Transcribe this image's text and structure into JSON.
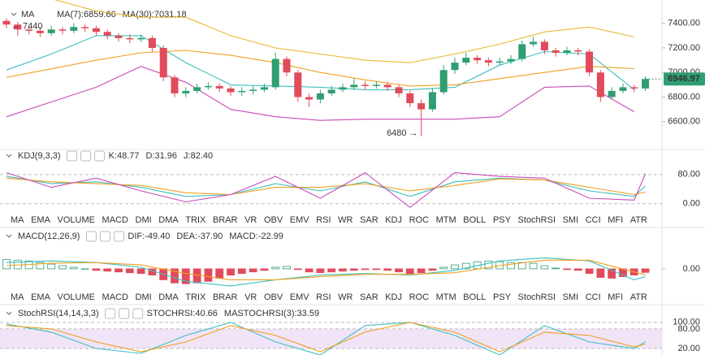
{
  "chart_data": [
    {
      "type": "candlestick",
      "header": "MA",
      "annotations": [
        "← 7440",
        "6480 →"
      ],
      "up_color": "#2f9e72",
      "down_color": "#e14b5b",
      "ylim": [
        6380,
        7590
      ],
      "yticks": [
        {
          "value": 6600,
          "label": "6600.00"
        },
        {
          "value": 6800,
          "label": "6800.00"
        },
        {
          "value": 7000,
          "label": "7000.00"
        },
        {
          "value": 7200,
          "label": "7200.00"
        },
        {
          "value": 7400,
          "label": "7400.00"
        }
      ],
      "open": [
        7420,
        7390,
        7350,
        7340,
        7320,
        7350,
        7340,
        7370,
        7360,
        7330,
        7300,
        7280,
        7270,
        7280,
        7200,
        6960,
        6830,
        6850,
        6880,
        6890,
        6870,
        6840,
        6850,
        6860,
        6880,
        7110,
        7000,
        6800,
        6780,
        6830,
        6860,
        6880,
        6900,
        6890,
        6900,
        6880,
        6830,
        6750,
        6700,
        6840,
        7020,
        7080,
        7120,
        7100,
        7080,
        7090,
        7110,
        7230,
        7250,
        7180,
        7160,
        7180,
        7170,
        7000,
        6800,
        6850,
        6880,
        6870
      ],
      "high": [
        7440,
        7410,
        7380,
        7370,
        7380,
        7370,
        7400,
        7390,
        7380,
        7350,
        7320,
        7310,
        7310,
        7300,
        7220,
        6980,
        6880,
        6910,
        6920,
        6910,
        6890,
        6880,
        6890,
        6910,
        7160,
        7130,
        7020,
        6830,
        6860,
        6890,
        6910,
        6950,
        6930,
        6930,
        6920,
        6900,
        6850,
        6780,
        6870,
        7060,
        7120,
        7160,
        7140,
        7120,
        7120,
        7140,
        7260,
        7290,
        7270,
        7200,
        7210,
        7200,
        7190,
        7020,
        6880,
        6910,
        6900,
        6970
      ],
      "low": [
        7360,
        7300,
        7310,
        7290,
        7300,
        7310,
        7320,
        7330,
        7300,
        7270,
        7250,
        7240,
        7250,
        7170,
        6930,
        6800,
        6800,
        6830,
        6860,
        6840,
        6810,
        6810,
        6820,
        6840,
        6860,
        6970,
        6760,
        6720,
        6750,
        6810,
        6840,
        6860,
        6860,
        6870,
        6850,
        6800,
        6720,
        6480,
        6680,
        6820,
        6990,
        7060,
        7070,
        7050,
        7060,
        7070,
        7090,
        7210,
        7150,
        7130,
        7140,
        7140,
        6970,
        6760,
        6780,
        6830,
        6840,
        6850
      ],
      "close": [
        7390,
        7350,
        7340,
        7320,
        7350,
        7340,
        7370,
        7360,
        7330,
        7300,
        7280,
        7270,
        7280,
        7200,
        6960,
        6830,
        6850,
        6880,
        6890,
        6870,
        6840,
        6850,
        6860,
        6880,
        7110,
        7000,
        6800,
        6780,
        6830,
        6860,
        6880,
        6900,
        6890,
        6900,
        6880,
        6830,
        6750,
        6700,
        6840,
        7020,
        7080,
        7120,
        7100,
        7080,
        7090,
        7110,
        7230,
        7250,
        7180,
        7160,
        7180,
        7170,
        7000,
        6800,
        6850,
        6880,
        6870,
        6946.97
      ],
      "series": [
        {
          "name": "MA(7):6859.66",
          "color": "#3cbfc0",
          "x": [
            0,
            4,
            8,
            12,
            16,
            20,
            24,
            28,
            32,
            36,
            40,
            44,
            48,
            52,
            56
          ],
          "values": [
            7020,
            7150,
            7300,
            7300,
            7080,
            6900,
            6890,
            6880,
            6860,
            6860,
            6880,
            7060,
            7170,
            7150,
            6860
          ]
        },
        {
          "name": "MA(30):7031.18",
          "color": "#f0a020",
          "x": [
            0,
            4,
            8,
            12,
            16,
            20,
            24,
            28,
            32,
            36,
            40,
            44,
            48,
            52,
            56
          ],
          "values": [
            6960,
            7030,
            7100,
            7160,
            7180,
            7140,
            7080,
            7000,
            6940,
            6890,
            6900,
            6950,
            7000,
            7050,
            7031
          ]
        },
        {
          "color": "#e8b830",
          "x": [
            0,
            4,
            8,
            12,
            16,
            20,
            24,
            28,
            32,
            36,
            40,
            44,
            48,
            52,
            56
          ],
          "values": [
            7620,
            7600,
            7500,
            7450,
            7450,
            7300,
            7200,
            7150,
            7100,
            7080,
            7150,
            7230,
            7330,
            7370,
            7290
          ]
        },
        {
          "color": "#c84ab8",
          "x": [
            0,
            4,
            8,
            12,
            16,
            20,
            24,
            28,
            32,
            36,
            40,
            44,
            48,
            52,
            56
          ],
          "values": [
            6640,
            6760,
            6880,
            7050,
            6920,
            6700,
            6640,
            6610,
            6620,
            6620,
            6620,
            6640,
            6880,
            6890,
            6680
          ]
        }
      ]
    },
    {
      "type": "line",
      "header": "KDJ(9,3,3)",
      "ylim": [
        -25,
        113
      ],
      "yticks": [
        {
          "value": 0,
          "label": "0.00"
        },
        {
          "value": 80,
          "label": "80.00"
        }
      ],
      "grid": true,
      "series": [
        {
          "name": "K:48.77",
          "color": "#3cbfc0",
          "x": [
            0,
            4,
            8,
            12,
            16,
            20,
            24,
            28,
            32,
            36,
            40,
            44,
            48,
            52,
            56,
            57
          ],
          "values": [
            75,
            55,
            60,
            45,
            20,
            25,
            55,
            35,
            60,
            20,
            60,
            70,
            65,
            35,
            20,
            48.77
          ]
        },
        {
          "name": "D:31.96",
          "color": "#f0a020",
          "x": [
            0,
            4,
            8,
            12,
            16,
            20,
            24,
            28,
            32,
            36,
            40,
            44,
            48,
            52,
            56,
            57
          ],
          "values": [
            70,
            60,
            55,
            50,
            30,
            25,
            45,
            45,
            55,
            35,
            50,
            68,
            65,
            45,
            25,
            31.96
          ]
        },
        {
          "name": "J:82.40",
          "color": "#c84ab8",
          "x": [
            0,
            4,
            8,
            12,
            16,
            20,
            24,
            28,
            32,
            36,
            40,
            44,
            48,
            52,
            56,
            57
          ],
          "values": [
            85,
            45,
            70,
            35,
            5,
            25,
            75,
            15,
            85,
            -10,
            85,
            75,
            70,
            15,
            10,
            82.4
          ]
        }
      ]
    },
    {
      "type": "macd",
      "header": "MACD(12,26,9)",
      "ylim": [
        -130,
        160
      ],
      "yticks": [
        {
          "value": 0,
          "label": "0.00"
        }
      ],
      "up_color": "#2f9e72",
      "down_color": "#e14b5b",
      "histogram": {
        "name": "MACD:-22.99",
        "color": "#c84ab8",
        "values": [
          60,
          55,
          50,
          40,
          30,
          20,
          10,
          0,
          -10,
          -15,
          -20,
          -25,
          -30,
          -40,
          -70,
          -90,
          -95,
          -90,
          -80,
          -60,
          -40,
          -30,
          -20,
          -10,
          10,
          15,
          -5,
          -20,
          -25,
          -20,
          -15,
          -10,
          -5,
          -5,
          -10,
          -20,
          -30,
          -25,
          -10,
          10,
          25,
          35,
          45,
          50,
          45,
          40,
          40,
          35,
          20,
          5,
          -5,
          -10,
          -30,
          -55,
          -60,
          -50,
          -40,
          -22.99
        ]
      },
      "series": [
        {
          "name": "DIF:-49.40",
          "color": "#3cbfc0",
          "x": [
            0,
            4,
            8,
            12,
            16,
            20,
            24,
            28,
            32,
            36,
            40,
            44,
            48,
            52,
            56,
            57
          ],
          "values": [
            40,
            50,
            40,
            10,
            -80,
            -110,
            -70,
            -40,
            -30,
            -40,
            -10,
            50,
            70,
            50,
            -70,
            -49.4
          ]
        },
        {
          "name": "DEA:-37.90",
          "color": "#f0a020",
          "x": [
            0,
            4,
            8,
            12,
            16,
            20,
            24,
            28,
            32,
            36,
            40,
            44,
            48,
            52,
            56,
            57
          ],
          "values": [
            20,
            35,
            40,
            25,
            -30,
            -70,
            -70,
            -50,
            -35,
            -35,
            -25,
            20,
            55,
            55,
            -20,
            -37.9
          ]
        }
      ]
    },
    {
      "type": "line",
      "header": "StochRSI(14,14,3,3)",
      "ylim": [
        0,
        112
      ],
      "band": [
        20,
        80
      ],
      "band_color": "#f1e4f7",
      "grid": true,
      "yticks": [
        {
          "value": 20,
          "label": "20.00"
        },
        {
          "value": 80,
          "label": "80.00"
        },
        {
          "value": 100,
          "label": "100.00"
        }
      ],
      "series": [
        {
          "name": "STOCHRSI:40.66",
          "color": "#3cbfc0",
          "x": [
            0,
            4,
            8,
            12,
            16,
            20,
            24,
            28,
            32,
            36,
            40,
            44,
            48,
            52,
            56,
            57
          ],
          "values": [
            95,
            70,
            20,
            5,
            60,
            100,
            40,
            0,
            90,
            100,
            60,
            0,
            90,
            40,
            20,
            40.66
          ]
        },
        {
          "name": "MASTOCHRSI(3):33.59",
          "color": "#f0a020",
          "x": [
            0,
            4,
            8,
            12,
            16,
            20,
            24,
            28,
            32,
            36,
            40,
            44,
            48,
            52,
            56,
            57
          ],
          "values": [
            90,
            80,
            40,
            10,
            40,
            90,
            60,
            10,
            70,
            100,
            70,
            10,
            70,
            60,
            25,
            33.59
          ]
        }
      ]
    }
  ],
  "indicator_tabs": [
    "MA",
    "EMA",
    "VOLUME",
    "MACD",
    "DMI",
    "DMA",
    "TRIX",
    "BRAR",
    "VR",
    "OBV",
    "EMV",
    "RSI",
    "WR",
    "SAR",
    "KDJ",
    "ROC",
    "MTM",
    "BOLL",
    "PSY",
    "StochRSI",
    "SMI",
    "CCI",
    "MFI",
    "ATR"
  ]
}
